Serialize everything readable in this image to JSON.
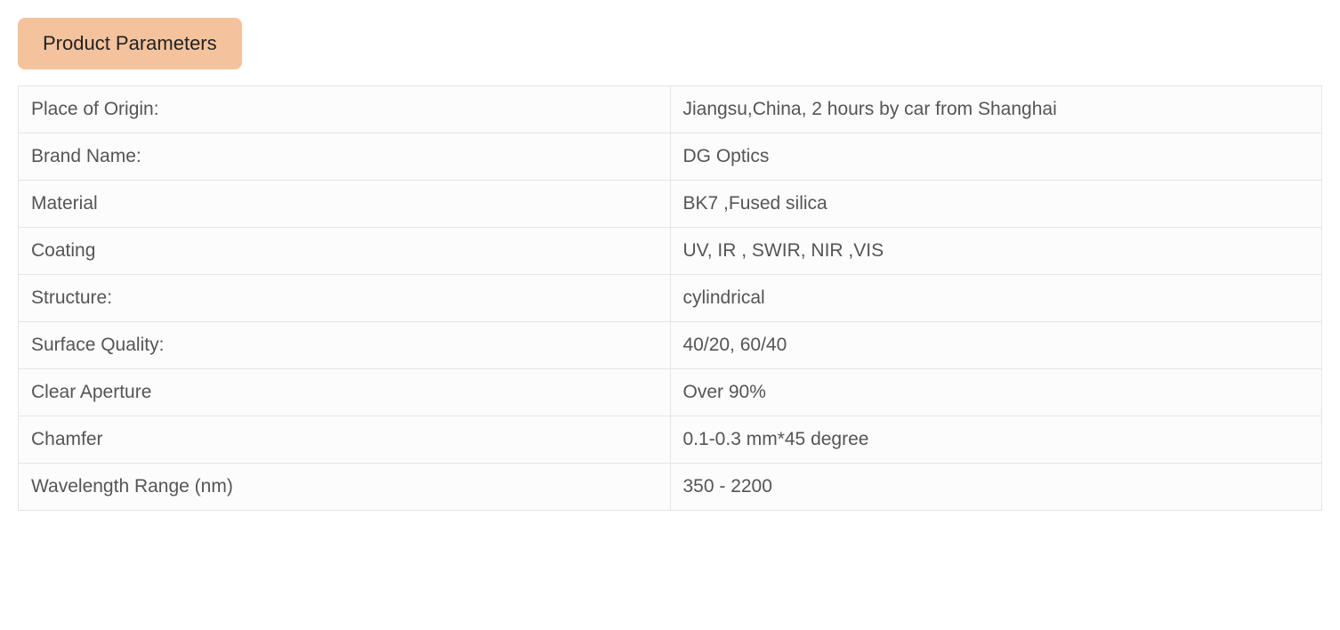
{
  "header": {
    "title": "Product Parameters"
  },
  "table": {
    "rows": [
      {
        "label": "Place of Origin:",
        "value": "Jiangsu,China,  2 hours by car from Shanghai"
      },
      {
        "label": "Brand Name:",
        "value": "DG Optics"
      },
      {
        "label": "Material",
        "value": "BK7 ,Fused silica"
      },
      {
        "label": "Coating",
        "value": "UV, IR , SWIR, NIR ,VIS"
      },
      {
        "label": "Structure:",
        "value": "cylindrical"
      },
      {
        "label": "Surface Quality:",
        "value": "40/20, 60/40"
      },
      {
        "label": "Clear Aperture",
        "value": "Over 90%"
      },
      {
        "label": "Chamfer",
        "value": "0.1-0.3 mm*45 degree"
      },
      {
        "label": "Wavelength Range (nm)",
        "value": "350 - 2200"
      }
    ]
  },
  "styling": {
    "tab_bg_color": "#f4c39d",
    "tab_text_color": "#222222",
    "tab_fontsize": 22,
    "cell_border_color": "#e5e5e5",
    "cell_bg_color": "#fcfcfc",
    "cell_text_color": "#555555",
    "cell_fontsize": 21,
    "body_bg_color": "#ffffff",
    "label_column_width": "50%",
    "value_column_width": "50%"
  }
}
